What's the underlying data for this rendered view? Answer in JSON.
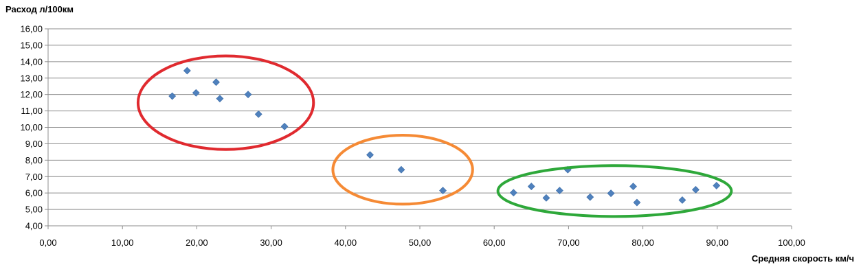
{
  "chart_data": {
    "type": "scatter",
    "title": "",
    "ylabel": "Расход л/100км",
    "xlabel": "Средняя скорость км/ч",
    "xlim": [
      0,
      100
    ],
    "ylim": [
      4,
      16
    ],
    "x_tick_step": 10,
    "y_tick_step": 1,
    "tick_format": "comma-2-decimals",
    "x_tick_labels": [
      "0,00",
      "10,00",
      "20,00",
      "30,00",
      "40,00",
      "50,00",
      "60,00",
      "70,00",
      "80,00",
      "90,00",
      "100,00"
    ],
    "y_tick_labels": [
      "4,00",
      "5,00",
      "6,00",
      "7,00",
      "8,00",
      "9,00",
      "10,00",
      "11,00",
      "12,00",
      "13,00",
      "14,00",
      "15,00",
      "16,00"
    ],
    "grid": "horizontal",
    "marker": "diamond",
    "marker_color": "#4F81BD",
    "series": [
      {
        "values": [
          [
            16.7,
            11.9
          ],
          [
            18.7,
            13.45
          ],
          [
            19.9,
            12.1
          ],
          [
            22.6,
            12.75
          ],
          [
            23.1,
            11.75
          ],
          [
            26.9,
            12.0
          ],
          [
            28.3,
            10.8
          ],
          [
            31.8,
            10.05
          ],
          [
            43.3,
            8.32
          ],
          [
            47.5,
            7.42
          ],
          [
            53.1,
            6.15
          ],
          [
            62.6,
            6.02
          ],
          [
            65.0,
            6.4
          ],
          [
            67.0,
            5.7
          ],
          [
            68.8,
            6.15
          ],
          [
            69.9,
            7.42
          ],
          [
            72.9,
            5.75
          ],
          [
            75.7,
            5.98
          ],
          [
            78.7,
            6.4
          ],
          [
            79.2,
            5.42
          ],
          [
            85.3,
            5.57
          ],
          [
            87.1,
            6.2
          ],
          [
            89.9,
            6.45
          ]
        ]
      }
    ],
    "annotations": [
      {
        "type": "ellipse",
        "color": "#E02A2F",
        "center": [
          23.9,
          11.5
        ],
        "radius": [
          11.8,
          2.85
        ]
      },
      {
        "type": "ellipse",
        "color": "#F58A35",
        "center": [
          47.7,
          7.42
        ],
        "radius": [
          9.4,
          2.1
        ]
      },
      {
        "type": "ellipse",
        "color": "#2EA83A",
        "center": [
          76.2,
          6.12
        ],
        "radius": [
          15.7,
          1.55
        ]
      }
    ]
  }
}
